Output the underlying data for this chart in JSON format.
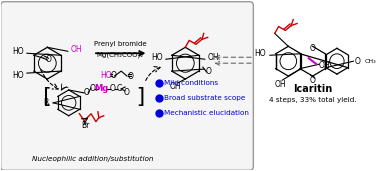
{
  "bg_color": "#ffffff",
  "box_edge_color": "#999999",
  "box_face_color": "#f5f5f5",
  "title": "Icaritin",
  "subtitle": "4 steps, 33% total yield.",
  "reagent1": "Prenyl bromide",
  "reagent2": "Mg(CH₂COO)₂",
  "bullet_points": [
    "Mild conditions",
    "Broad substrate scope",
    "Mechanistic elucidation"
  ],
  "bullet_color": "#0000dd",
  "nucleophilic_text": "Nucleophilic addition/substitution",
  "prenyl_color": "#cc0000",
  "mg_color": "#cc00cc",
  "pink_color": "#cc00cc",
  "black": "#000000",
  "gray": "#666666",
  "fig_w": 3.78,
  "fig_h": 1.71,
  "dpi": 100
}
